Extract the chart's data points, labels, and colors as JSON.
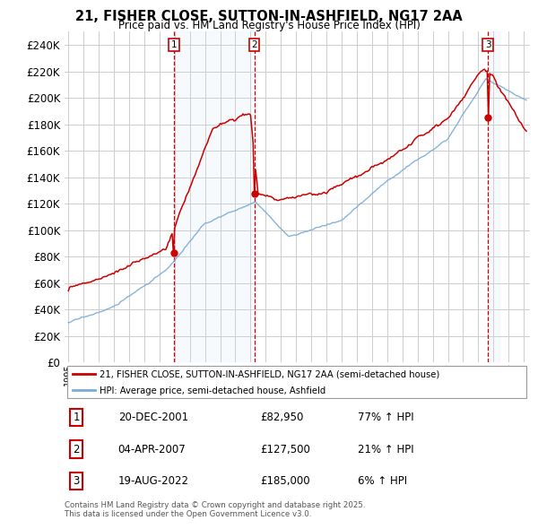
{
  "title1": "21, FISHER CLOSE, SUTTON-IN-ASHFIELD, NG17 2AA",
  "title2": "Price paid vs. HM Land Registry's House Price Index (HPI)",
  "ylabel_ticks": [
    "£0",
    "£20K",
    "£40K",
    "£60K",
    "£80K",
    "£100K",
    "£120K",
    "£140K",
    "£160K",
    "£180K",
    "£200K",
    "£220K",
    "£240K"
  ],
  "ytick_values": [
    0,
    20000,
    40000,
    60000,
    80000,
    100000,
    120000,
    140000,
    160000,
    180000,
    200000,
    220000,
    240000
  ],
  "ylim": [
    0,
    250000
  ],
  "legend_line1": "21, FISHER CLOSE, SUTTON-IN-ASHFIELD, NG17 2AA (semi-detached house)",
  "legend_line2": "HPI: Average price, semi-detached house, Ashfield",
  "sale1_date": "20-DEC-2001",
  "sale1_price": 82950,
  "sale1_hpi": "77% ↑ HPI",
  "sale2_date": "04-APR-2007",
  "sale2_price": 127500,
  "sale2_hpi": "21% ↑ HPI",
  "sale3_date": "19-AUG-2022",
  "sale3_price": 185000,
  "sale3_hpi": "6% ↑ HPI",
  "footnote1": "Contains HM Land Registry data © Crown copyright and database right 2025.",
  "footnote2": "This data is licensed under the Open Government Licence v3.0.",
  "red_color": "#cc0000",
  "blue_color": "#7aabdb",
  "vline_color": "#cc0000",
  "shade_color": "#d0e4f5",
  "bg_color": "#ffffff",
  "grid_color": "#cccccc",
  "sale_times": [
    2001.958,
    2007.25,
    2022.625
  ],
  "sale_prices": [
    82950,
    127500,
    185000
  ]
}
